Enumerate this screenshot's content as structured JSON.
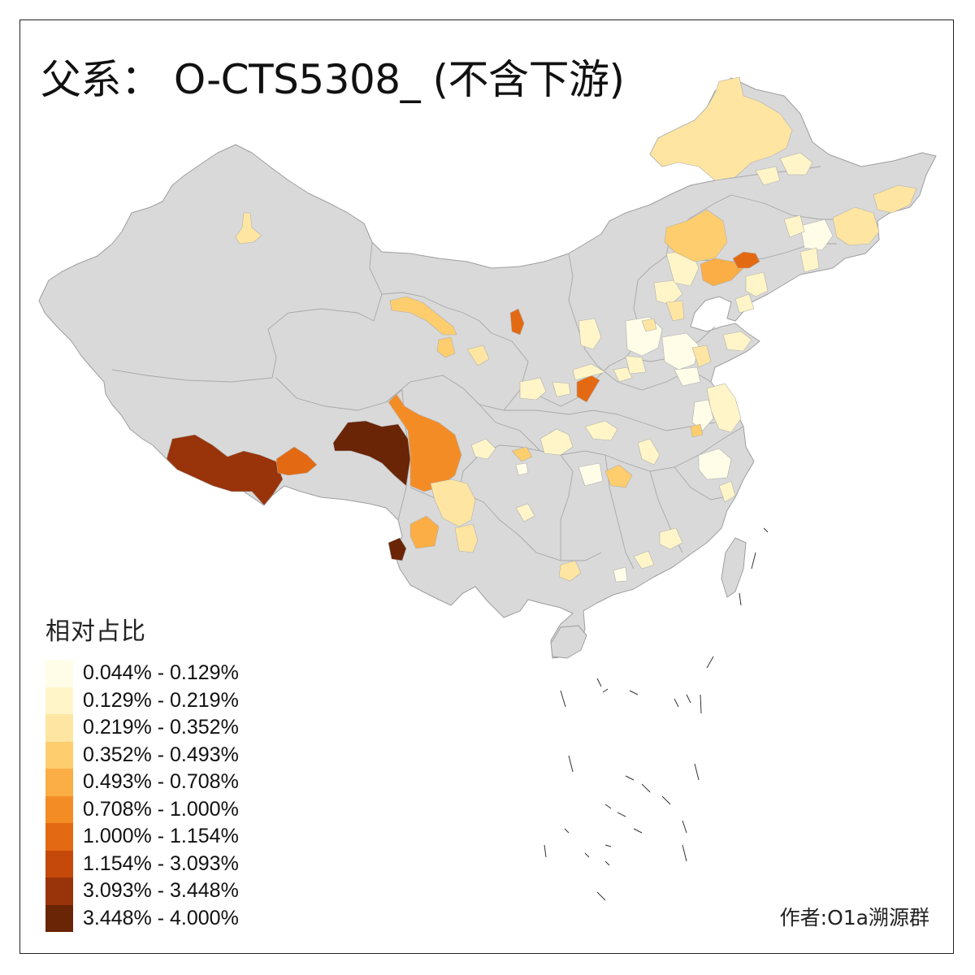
{
  "title": "父系： O-CTS5308_ (不含下游)",
  "legend": {
    "title": "相对占比",
    "items": [
      {
        "label": "0.044% - 0.129%",
        "color": "#FFFDE8"
      },
      {
        "label": "0.129% - 0.219%",
        "color": "#FFF5C8"
      },
      {
        "label": "0.219% - 0.352%",
        "color": "#FEE5A2"
      },
      {
        "label": "0.352% - 0.493%",
        "color": "#FDCD6E"
      },
      {
        "label": "0.493% - 0.708%",
        "color": "#FBAE45"
      },
      {
        "label": "0.708% - 1.000%",
        "color": "#F48C26"
      },
      {
        "label": "1.000% - 1.154%",
        "color": "#E36A12"
      },
      {
        "label": "1.154% - 3.093%",
        "color": "#C5490A"
      },
      {
        "label": "3.093% - 3.448%",
        "color": "#99330A"
      },
      {
        "label": "3.448% - 4.000%",
        "color": "#6A2406"
      }
    ]
  },
  "credit": "作者:O1a溯源群",
  "colors": {
    "base_land": "#D9D9D9",
    "border": "#9E9E9E",
    "frame": "#222222",
    "background": "#FFFFFF"
  }
}
